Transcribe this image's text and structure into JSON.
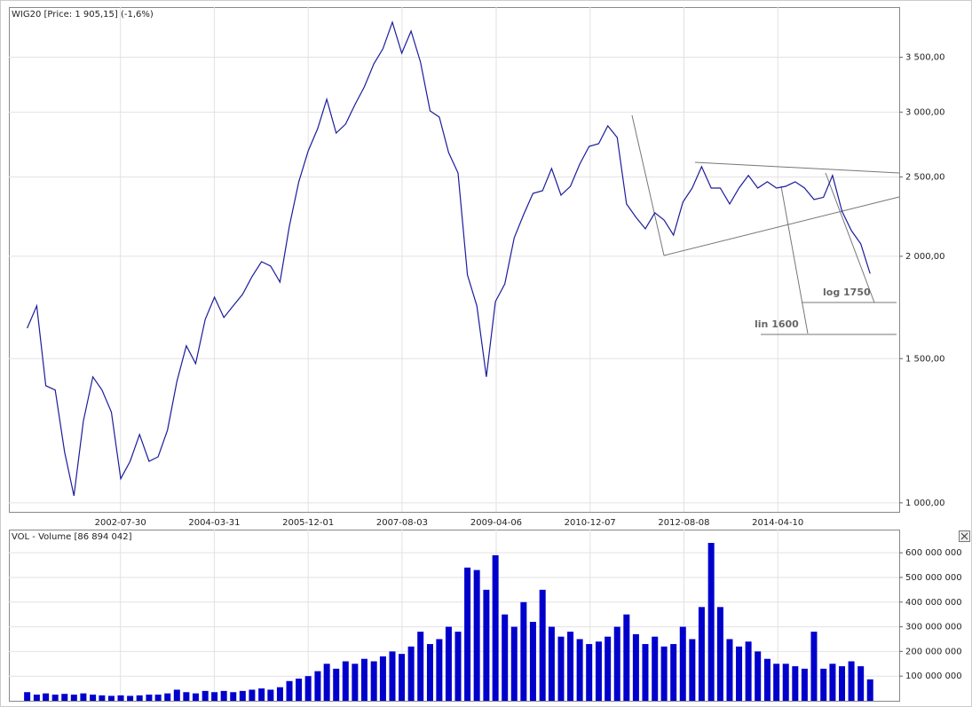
{
  "chart_data": [
    {
      "type": "line",
      "title": "WIG20 [Price: 1 905,15] (-1,6%)",
      "color": "#1c1c9c",
      "log": true,
      "grid": true,
      "xlim": [
        "2000-08-04",
        "2016-06-07"
      ],
      "xticks": [
        "2002-07-30",
        "2004-03-31",
        "2005-12-01",
        "2007-08-03",
        "2009-04-06",
        "2010-12-07",
        "2012-08-08",
        "2014-04-10"
      ],
      "ylim": [
        975,
        4030
      ],
      "yticks": [
        {
          "value": 1000,
          "label": "1 000,00"
        },
        {
          "value": 1500,
          "label": "1 500,00"
        },
        {
          "value": 2000,
          "label": "2 000,00"
        },
        {
          "value": 2500,
          "label": "2 500,00"
        },
        {
          "value": 3000,
          "label": "3 000,00"
        },
        {
          "value": 3500,
          "label": "3 500,00"
        }
      ],
      "annotations": [
        "log 1750",
        "lin 1600"
      ],
      "x": [
        "2000-12-01",
        "2001-02-01",
        "2001-04-01",
        "2001-06-01",
        "2001-08-01",
        "2001-10-01",
        "2001-12-01",
        "2002-02-01",
        "2002-04-01",
        "2002-06-01",
        "2002-08-01",
        "2002-10-01",
        "2002-12-01",
        "2003-02-01",
        "2003-04-01",
        "2003-06-01",
        "2003-08-01",
        "2003-10-01",
        "2003-12-01",
        "2004-02-01",
        "2004-04-01",
        "2004-06-01",
        "2004-08-01",
        "2004-10-01",
        "2004-12-01",
        "2005-02-01",
        "2005-04-01",
        "2005-06-01",
        "2005-08-01",
        "2005-10-01",
        "2005-12-01",
        "2006-02-01",
        "2006-04-01",
        "2006-06-01",
        "2006-08-01",
        "2006-10-01",
        "2006-12-01",
        "2007-02-01",
        "2007-04-01",
        "2007-06-01",
        "2007-08-01",
        "2007-10-01",
        "2007-12-01",
        "2008-02-01",
        "2008-04-01",
        "2008-06-01",
        "2008-08-01",
        "2008-10-01",
        "2008-12-01",
        "2009-02-01",
        "2009-04-01",
        "2009-06-01",
        "2009-08-01",
        "2009-10-01",
        "2009-12-01",
        "2010-02-01",
        "2010-04-01",
        "2010-06-01",
        "2010-08-01",
        "2010-10-01",
        "2010-12-01",
        "2011-02-01",
        "2011-04-01",
        "2011-06-01",
        "2011-08-01",
        "2011-10-01",
        "2011-12-01",
        "2012-02-01",
        "2012-04-01",
        "2012-06-01",
        "2012-08-01",
        "2012-10-01",
        "2012-12-01",
        "2013-02-01",
        "2013-04-01",
        "2013-06-01",
        "2013-08-01",
        "2013-10-01",
        "2013-12-01",
        "2014-02-01",
        "2014-04-01",
        "2014-06-01",
        "2014-08-01",
        "2014-10-01",
        "2014-12-01",
        "2015-02-01",
        "2015-04-01",
        "2015-06-01",
        "2015-08-01",
        "2015-10-01",
        "2015-12-01"
      ],
      "values": [
        1634,
        1740,
        1390,
        1373,
        1153,
        1020,
        1258,
        1425,
        1373,
        1290,
        1070,
        1124,
        1212,
        1124,
        1138,
        1227,
        1407,
        1555,
        1479,
        1675,
        1783,
        1684,
        1740,
        1797,
        1889,
        1970,
        1946,
        1860,
        2177,
        2466,
        2690,
        2864,
        3110,
        2828,
        2900,
        3064,
        3220,
        3436,
        3585,
        3862,
        3540,
        3768,
        3453,
        3010,
        2958,
        2677,
        2528,
        1898,
        1740,
        1425,
        1761,
        1851,
        2107,
        2249,
        2387,
        2405,
        2560,
        2375,
        2435,
        2592,
        2724,
        2745,
        2886,
        2793,
        2317,
        2232,
        2161,
        2260,
        2215,
        2123,
        2329,
        2423,
        2573,
        2423,
        2423,
        2317,
        2423,
        2510,
        2423,
        2466,
        2423,
        2435,
        2466,
        2423,
        2346,
        2361,
        2510,
        2271,
        2150,
        2071,
        1905.15
      ]
    },
    {
      "type": "bar",
      "title": "VOL - Volume [86 894 042]",
      "color": "#0000cc",
      "grid": true,
      "xlim": [
        "2000-08-04",
        "2016-06-07"
      ],
      "ylim": [
        0,
        694000000
      ],
      "yticks": [
        {
          "value": 100000000,
          "label": "100 000 000"
        },
        {
          "value": 200000000,
          "label": "200 000 000"
        },
        {
          "value": 300000000,
          "label": "300 000 000"
        },
        {
          "value": 400000000,
          "label": "400 000 000"
        },
        {
          "value": 500000000,
          "label": "500 000 000"
        },
        {
          "value": 600000000,
          "label": "600 000 000"
        }
      ],
      "x": [
        "2000-12-01",
        "2001-02-01",
        "2001-04-01",
        "2001-06-01",
        "2001-08-01",
        "2001-10-01",
        "2001-12-01",
        "2002-02-01",
        "2002-04-01",
        "2002-06-01",
        "2002-08-01",
        "2002-10-01",
        "2002-12-01",
        "2003-02-01",
        "2003-04-01",
        "2003-06-01",
        "2003-08-01",
        "2003-10-01",
        "2003-12-01",
        "2004-02-01",
        "2004-04-01",
        "2004-06-01",
        "2004-08-01",
        "2004-10-01",
        "2004-12-01",
        "2005-02-01",
        "2005-04-01",
        "2005-06-01",
        "2005-08-01",
        "2005-10-01",
        "2005-12-01",
        "2006-02-01",
        "2006-04-01",
        "2006-06-01",
        "2006-08-01",
        "2006-10-01",
        "2006-12-01",
        "2007-02-01",
        "2007-04-01",
        "2007-06-01",
        "2007-08-01",
        "2007-10-01",
        "2007-12-01",
        "2008-02-01",
        "2008-04-01",
        "2008-06-01",
        "2008-08-01",
        "2008-10-01",
        "2008-12-01",
        "2009-02-01",
        "2009-04-01",
        "2009-06-01",
        "2009-08-01",
        "2009-10-01",
        "2009-12-01",
        "2010-02-01",
        "2010-04-01",
        "2010-06-01",
        "2010-08-01",
        "2010-10-01",
        "2010-12-01",
        "2011-02-01",
        "2011-04-01",
        "2011-06-01",
        "2011-08-01",
        "2011-10-01",
        "2011-12-01",
        "2012-02-01",
        "2012-04-01",
        "2012-06-01",
        "2012-08-01",
        "2012-10-01",
        "2012-12-01",
        "2013-02-01",
        "2013-04-01",
        "2013-06-01",
        "2013-08-01",
        "2013-10-01",
        "2013-12-01",
        "2014-02-01",
        "2014-04-01",
        "2014-06-01",
        "2014-08-01",
        "2014-10-01",
        "2014-12-01",
        "2015-02-01",
        "2015-04-01",
        "2015-06-01",
        "2015-08-01",
        "2015-10-01",
        "2015-12-01"
      ],
      "values": [
        35000000,
        25000000,
        30000000,
        25000000,
        28000000,
        25000000,
        30000000,
        25000000,
        22000000,
        20000000,
        22000000,
        20000000,
        22000000,
        25000000,
        25000000,
        30000000,
        45000000,
        35000000,
        30000000,
        40000000,
        35000000,
        40000000,
        35000000,
        40000000,
        45000000,
        50000000,
        45000000,
        55000000,
        80000000,
        90000000,
        100000000,
        120000000,
        150000000,
        130000000,
        160000000,
        150000000,
        170000000,
        160000000,
        180000000,
        200000000,
        190000000,
        220000000,
        280000000,
        230000000,
        250000000,
        300000000,
        280000000,
        540000000,
        530000000,
        450000000,
        590000000,
        350000000,
        300000000,
        400000000,
        320000000,
        450000000,
        300000000,
        260000000,
        280000000,
        250000000,
        230000000,
        240000000,
        260000000,
        300000000,
        350000000,
        270000000,
        230000000,
        260000000,
        220000000,
        230000000,
        300000000,
        250000000,
        380000000,
        640000000,
        380000000,
        250000000,
        220000000,
        240000000,
        200000000,
        170000000,
        150000000,
        150000000,
        140000000,
        130000000,
        280000000,
        130000000,
        150000000,
        140000000,
        160000000,
        140000000,
        86894042
      ]
    }
  ]
}
